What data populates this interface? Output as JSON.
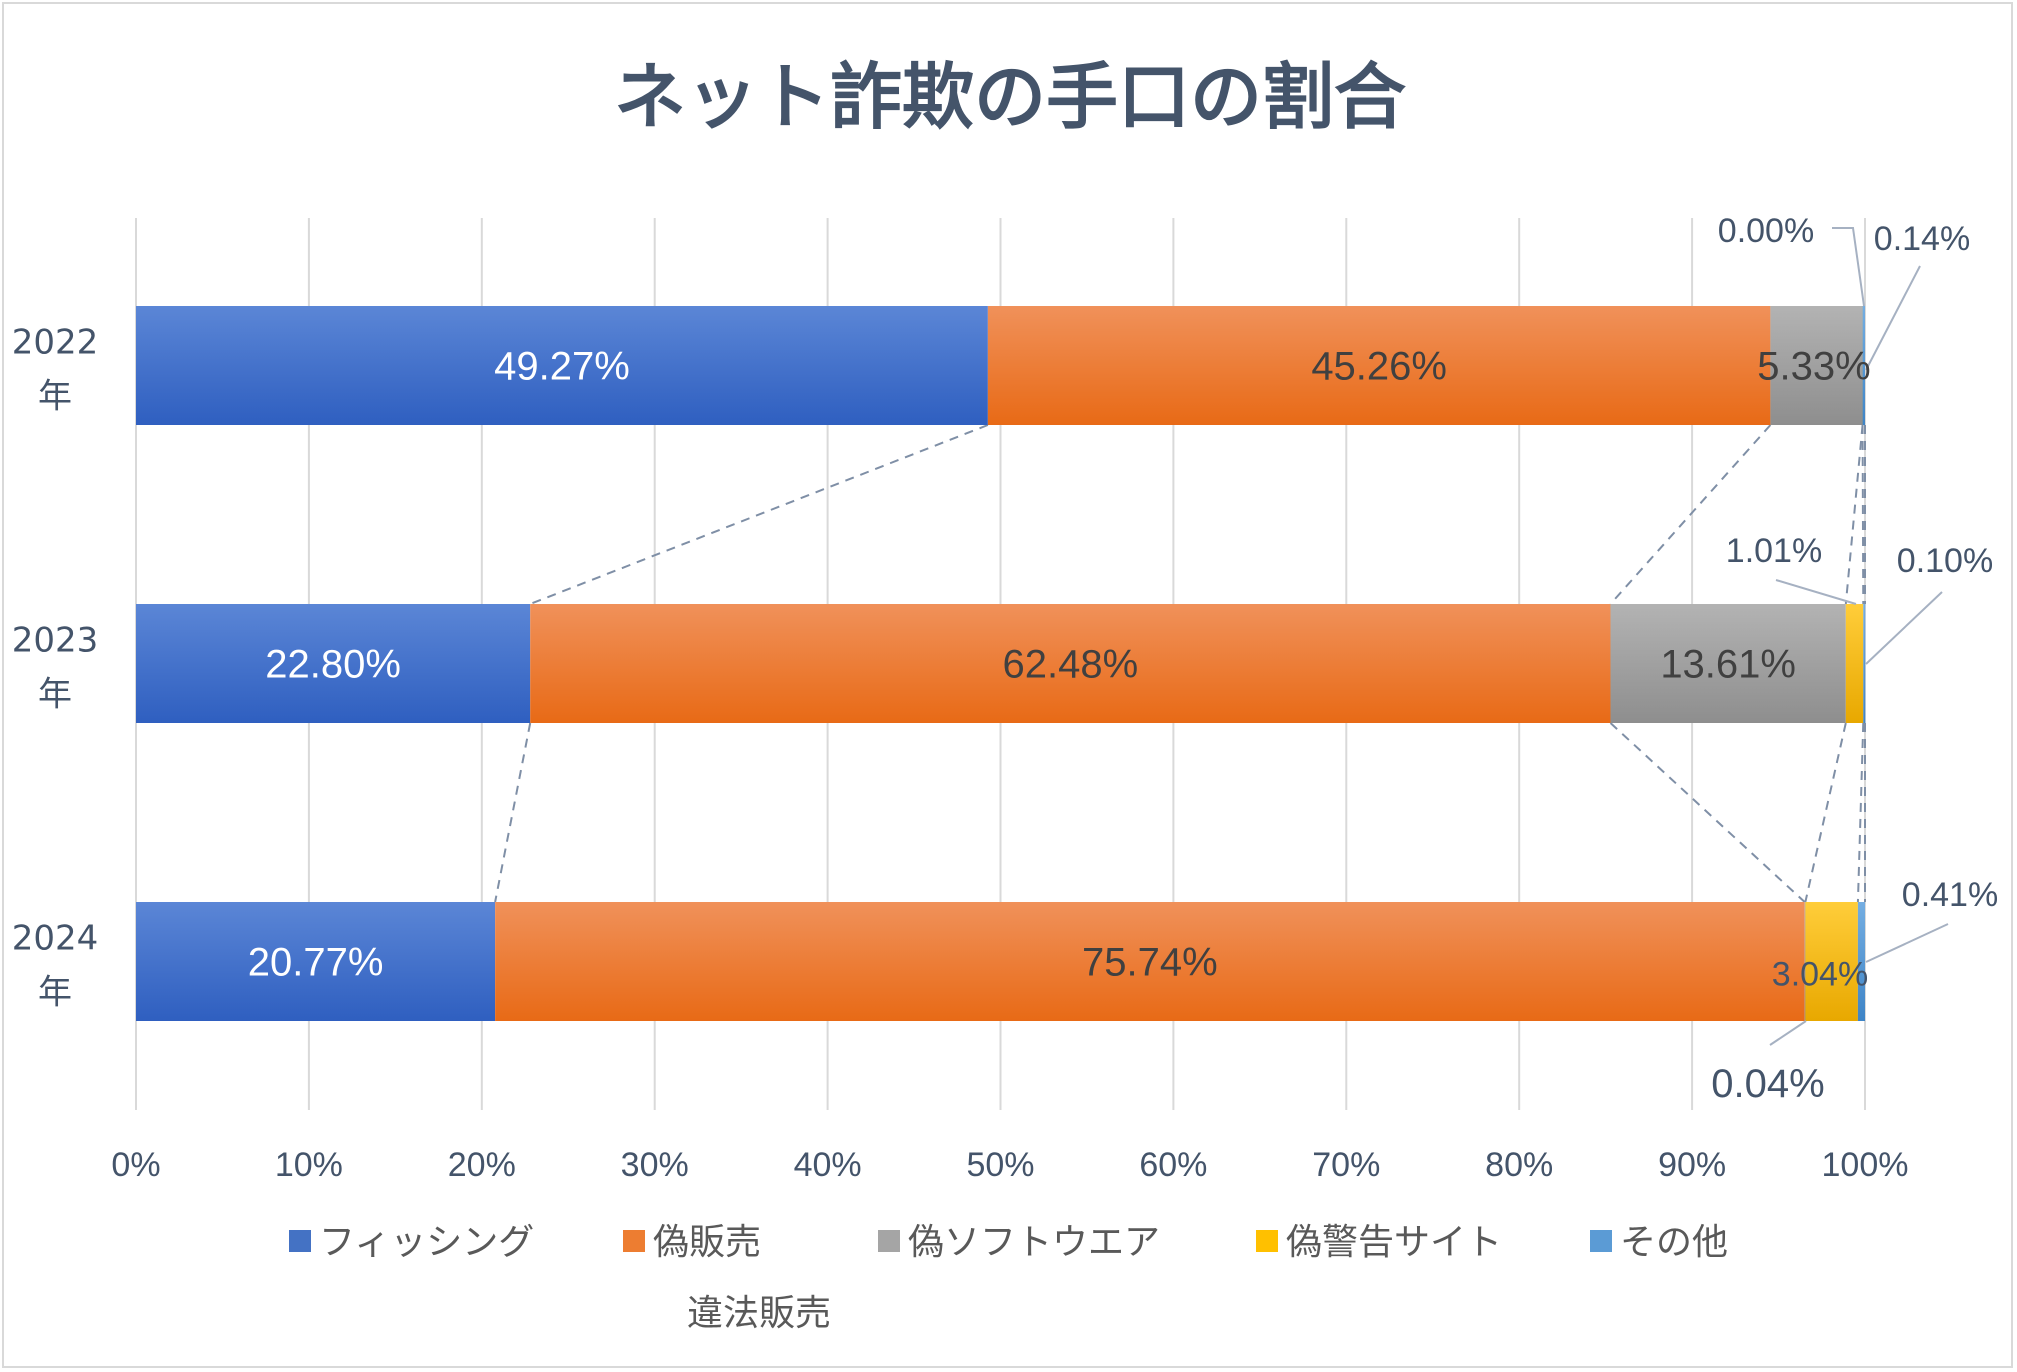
{
  "chart_data": {
    "type": "bar",
    "orientation": "horizontal",
    "stacked": "100%",
    "title": "ネット詐欺の手口の割合",
    "categories": [
      {
        "year": "2022",
        "suffix": "年"
      },
      {
        "year": "2023",
        "suffix": "年"
      },
      {
        "year": "2024",
        "suffix": "年"
      }
    ],
    "series": [
      {
        "name": "フィッシング",
        "color": "#4472c4",
        "values": [
          49.27,
          22.8,
          20.77
        ],
        "labels": [
          "49.27%",
          "22.80%",
          "20.77%"
        ]
      },
      {
        "name": "偽販売",
        "color": "#ed7d31",
        "values": [
          45.26,
          62.48,
          75.74
        ],
        "labels": [
          "45.26%",
          "62.48%",
          "75.74%"
        ]
      },
      {
        "name": "偽ソフトウエア",
        "color": "#a5a5a5",
        "values": [
          5.33,
          13.61,
          0.04
        ],
        "labels": [
          "5.33%",
          "13.61%",
          "0.04%"
        ]
      },
      {
        "name": "偽警告サイト",
        "color": "#ffc000",
        "values": [
          0.0,
          1.01,
          3.04
        ],
        "labels": [
          "0.00%",
          "1.01%",
          "3.04%"
        ]
      },
      {
        "name": "その他",
        "color": "#5b9bd5",
        "values": [
          0.14,
          0.1,
          0.41
        ],
        "labels": [
          "0.14%",
          "0.10%",
          "0.41%"
        ]
      },
      {
        "name": "違法販売",
        "color": "#70ad47",
        "values": [
          0,
          0,
          0
        ],
        "labels": []
      }
    ],
    "x_ticks": [
      "0%",
      "10%",
      "20%",
      "30%",
      "40%",
      "50%",
      "60%",
      "70%",
      "80%",
      "90%",
      "100%"
    ],
    "xlim": [
      0,
      100
    ],
    "grid": true,
    "series_lines": true,
    "legend": "bottom"
  }
}
